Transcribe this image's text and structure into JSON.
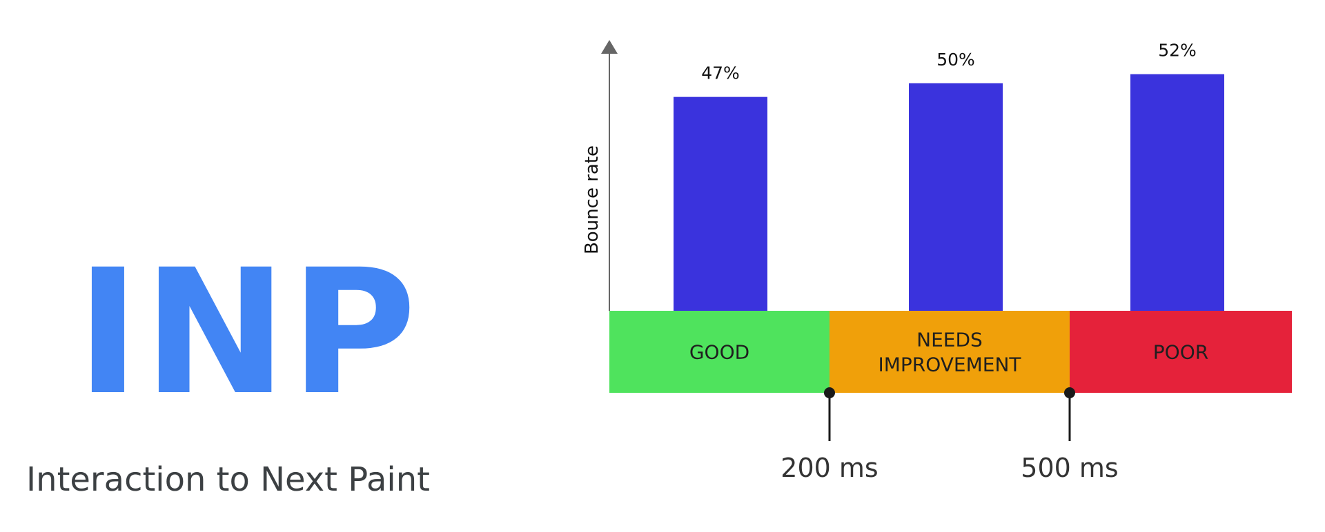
{
  "branding": {
    "acronym": "INP",
    "full_name": "Interaction to Next Paint",
    "acronym_color": "#4285f4",
    "full_name_color": "#3c4043"
  },
  "chart_data": {
    "type": "bar",
    "title": "",
    "ylabel": "Bounce rate",
    "xlabel": "",
    "ylim": [
      0,
      58
    ],
    "grid": false,
    "legend": "none",
    "categories": [
      "GOOD",
      "NEEDS IMPROVEMENT",
      "POOR"
    ],
    "values": [
      47,
      50,
      52
    ],
    "value_labels": [
      "47%",
      "50%",
      "52%"
    ],
    "bar_color": "#3a33dd",
    "bands": [
      {
        "label_lines": [
          "GOOD"
        ],
        "color": "#4fe35d"
      },
      {
        "label_lines": [
          "NEEDS",
          "IMPROVEMENT"
        ],
        "color": "#f0a00a"
      },
      {
        "label_lines": [
          "POOR"
        ],
        "color": "#e5223a"
      }
    ],
    "thresholds": [
      "200 ms",
      "500 ms"
    ]
  }
}
